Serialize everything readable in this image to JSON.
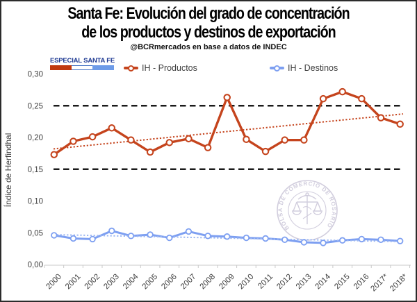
{
  "header": {
    "title_line1": "Santa Fe: Evolución del grado de concentración",
    "title_line2": "de los productos y destinos de exportación",
    "subtitle": "@BCRmercados en base a datos de INDEC"
  },
  "badge": {
    "label": "ESPECIAL SANTA FE",
    "text_color": "#1E3A93",
    "bar_colors": [
      "#C0390F",
      "#FFFFFF",
      "#6D9BE8"
    ]
  },
  "legend": {
    "items": [
      {
        "label": "IH - Productos",
        "color": "#C5441D"
      },
      {
        "label": "IH - Destinos",
        "color": "#7D9FF1"
      }
    ]
  },
  "watermark": {
    "text": "BOLSA DE COMERCIO DE ROSARIO",
    "color": "#9A92B5"
  },
  "chart_data": {
    "type": "line",
    "title": "Santa Fe: Evolución del grado de concentración de los productos y destinos de exportación",
    "subtitle": "@BCRmercados en base a datos de INDEC",
    "ylabel": "Índice de Herfindhal",
    "xlabel": "",
    "ylim": [
      0,
      0.3
    ],
    "grid": false,
    "legend_position": "top",
    "x": [
      "2000",
      "2001",
      "2002",
      "2003",
      "2004",
      "2005",
      "2006",
      "2007",
      "2008",
      "2009",
      "2010",
      "2011",
      "2012",
      "2013",
      "2014",
      "2015",
      "2016",
      "2017*",
      "2018*"
    ],
    "series": [
      {
        "name": "IH - Productos",
        "color": "#C5441D",
        "values": [
          0.173,
          0.194,
          0.201,
          0.215,
          0.196,
          0.177,
          0.192,
          0.198,
          0.184,
          0.263,
          0.197,
          0.178,
          0.196,
          0.196,
          0.261,
          0.272,
          0.261,
          0.231,
          0.221
        ]
      },
      {
        "name": "IH - Destinos",
        "color": "#7D9FF1",
        "values": [
          0.046,
          0.041,
          0.04,
          0.053,
          0.045,
          0.047,
          0.042,
          0.052,
          0.045,
          0.044,
          0.042,
          0.041,
          0.039,
          0.035,
          0.034,
          0.038,
          0.04,
          0.039,
          0.037
        ]
      }
    ],
    "trendlines": [
      {
        "series": "IH - Productos",
        "start": 0.182,
        "end": 0.237,
        "style": "dotted",
        "color": "#C5441D"
      },
      {
        "series": "IH - Destinos",
        "start": 0.047,
        "end": 0.036,
        "style": "dotted",
        "color": "#9DB8F3"
      }
    ],
    "reference_lines": [
      {
        "value": 0.25,
        "style": "dashed",
        "color": "#1A1A1A"
      },
      {
        "value": 0.15,
        "style": "dashed",
        "color": "#1A1A1A"
      }
    ],
    "y_ticks": [
      {
        "value": 0.0,
        "label": "0,00"
      },
      {
        "value": 0.05,
        "label": "0,05"
      },
      {
        "value": 0.1,
        "label": "0,10"
      },
      {
        "value": 0.15,
        "label": "0,15"
      },
      {
        "value": 0.2,
        "label": "0,20"
      },
      {
        "value": 0.25,
        "label": "0,25"
      },
      {
        "value": 0.3,
        "label": "0,30"
      }
    ]
  }
}
